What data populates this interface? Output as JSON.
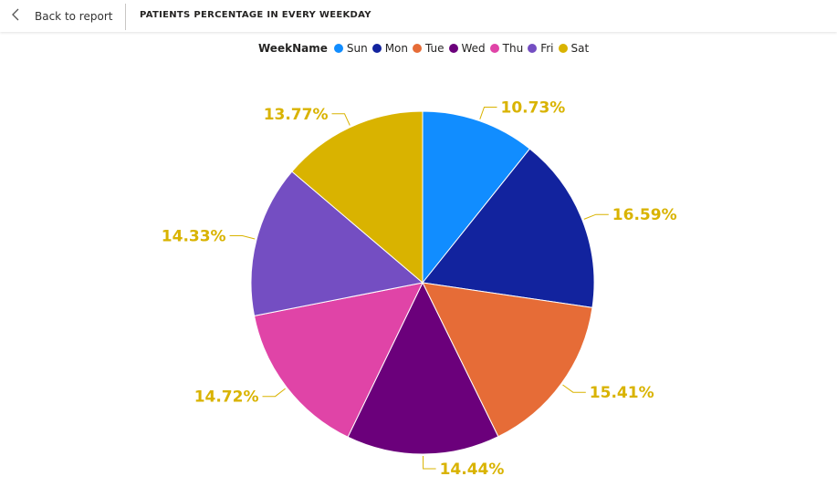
{
  "header": {
    "back_label": "Back to report",
    "title": "PATIENTS PERCENTAGE IN EVERY WEEKDAY"
  },
  "legend": {
    "title": "WeekName"
  },
  "label_color": "#D9B300",
  "chart_data": {
    "type": "pie",
    "title": "PATIENTS PERCENTAGE IN EVERY WEEKDAY",
    "legend_title": "WeekName",
    "legend_position": "top",
    "slices": [
      {
        "name": "Sun",
        "value": 10.73,
        "label": "10.73%",
        "color": "#118DFF"
      },
      {
        "name": "Mon",
        "value": 16.59,
        "label": "16.59%",
        "color": "#12239E"
      },
      {
        "name": "Tue",
        "value": 15.41,
        "label": "15.41%",
        "color": "#E66C37"
      },
      {
        "name": "Wed",
        "value": 14.44,
        "label": "14.44%",
        "color": "#6B007B"
      },
      {
        "name": "Thu",
        "value": 14.72,
        "label": "14.72%",
        "color": "#E044A7"
      },
      {
        "name": "Fri",
        "value": 14.33,
        "label": "14.33%",
        "color": "#744EC2"
      },
      {
        "name": "Sat",
        "value": 13.77,
        "label": "13.77%",
        "color": "#D9B300"
      }
    ]
  }
}
